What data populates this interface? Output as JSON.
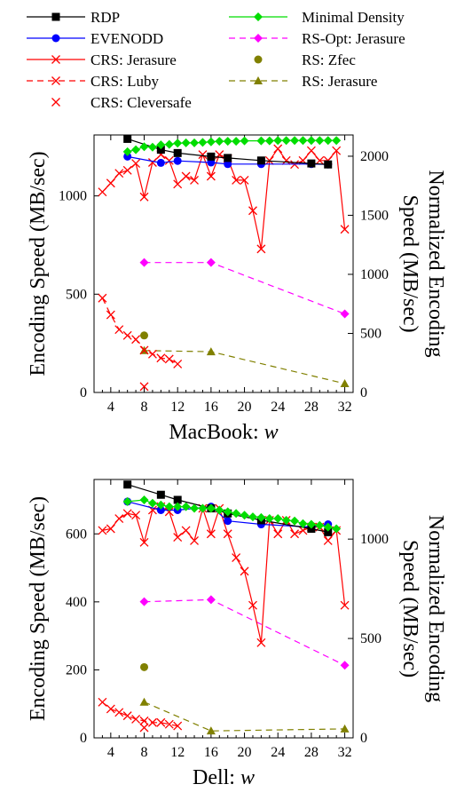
{
  "legend": [
    {
      "id": "rdp",
      "label": "RDP",
      "color": "#000000",
      "marker": "square",
      "dash": "solid"
    },
    {
      "id": "evenodd",
      "label": "EVENODD",
      "color": "#0000ff",
      "marker": "circle",
      "dash": "solid"
    },
    {
      "id": "crs_jer",
      "label": "CRS: Jerasure",
      "color": "#ff0000",
      "marker": "x",
      "dash": "solid"
    },
    {
      "id": "crs_luby",
      "label": "CRS: Luby",
      "color": "#ff0000",
      "marker": "x",
      "dash": "dashed"
    },
    {
      "id": "crs_clever",
      "label": "CRS: Cleversafe",
      "color": "#ff0000",
      "marker": "x",
      "dash": "none"
    },
    {
      "id": "mindens",
      "label": "Minimal Density",
      "color": "#00dd00",
      "marker": "diamond",
      "dash": "solid"
    },
    {
      "id": "rsopt",
      "label": "RS-Opt: Jerasure",
      "color": "#ff00ff",
      "marker": "diamond",
      "dash": "dashed"
    },
    {
      "id": "rszfec",
      "label": "RS: Zfec",
      "color": "#808000",
      "marker": "circle",
      "dash": "none"
    },
    {
      "id": "rsjer",
      "label": "RS: Jerasure",
      "color": "#808000",
      "marker": "triangle",
      "dash": "dashed"
    }
  ],
  "chart_data": [
    {
      "type": "line",
      "xlabel_text": "MacBook: ",
      "xlabel_var": "w",
      "ylabel": "Encoding Speed (MB/sec)",
      "y2label_line1": "Normalized Encoding",
      "y2label_line2": "Speed (MB/sec)",
      "xlim": [
        2,
        33
      ],
      "ylim": [
        0,
        1310
      ],
      "y2lim": [
        0,
        2180
      ],
      "xticks": [
        4,
        8,
        12,
        16,
        20,
        24,
        28,
        32
      ],
      "yticks": [
        0,
        500,
        1000
      ],
      "y2ticks": [
        0,
        500,
        1000,
        1500,
        2000
      ],
      "series": [
        {
          "id": "rdp",
          "x": [
            6,
            10,
            12,
            16,
            18,
            22,
            28,
            30
          ],
          "y": [
            1290,
            1235,
            1218,
            1200,
            1193,
            1180,
            1165,
            1160
          ]
        },
        {
          "id": "evenodd",
          "x": [
            6,
            10,
            12,
            16,
            18,
            22,
            28,
            30
          ],
          "y": [
            1200,
            1168,
            1178,
            1170,
            1162,
            1162,
            1162,
            1160
          ]
        },
        {
          "id": "crs_jer",
          "x": [
            3,
            4,
            5,
            6,
            7,
            8,
            9,
            10,
            11,
            12,
            13,
            14,
            15,
            16,
            17,
            18,
            19,
            20,
            21,
            22,
            23,
            24,
            25,
            26,
            27,
            28,
            29,
            30,
            31,
            32
          ],
          "y": [
            1020,
            1065,
            1115,
            1130,
            1165,
            995,
            1170,
            1210,
            1180,
            1060,
            1100,
            1080,
            1210,
            1100,
            1210,
            1190,
            1080,
            1080,
            925,
            730,
            1180,
            1240,
            1180,
            1160,
            1180,
            1230,
            1180,
            1180,
            1230,
            830
          ]
        },
        {
          "id": "crs_luby",
          "x": [
            3,
            4,
            5,
            6,
            7,
            8,
            9,
            10,
            11,
            12
          ],
          "y": [
            480,
            395,
            320,
            290,
            270,
            215,
            195,
            175,
            170,
            145
          ]
        },
        {
          "id": "crs_clever",
          "x": [
            8
          ],
          "y": [
            30
          ]
        },
        {
          "id": "mindens",
          "x": [
            6,
            7,
            8,
            9,
            10,
            11,
            12,
            13,
            14,
            15,
            16,
            17,
            18,
            19,
            20,
            22,
            23,
            24,
            25,
            26,
            27,
            28,
            29,
            30,
            31
          ],
          "y": [
            1225,
            1235,
            1250,
            1248,
            1260,
            1262,
            1268,
            1270,
            1270,
            1272,
            1275,
            1278,
            1278,
            1278,
            1280,
            1280,
            1280,
            1282,
            1282,
            1282,
            1282,
            1282,
            1282,
            1282,
            1282
          ]
        },
        {
          "id": "rsopt",
          "axis": "y2",
          "x": [
            8,
            16,
            32
          ],
          "y": [
            1100,
            1100,
            665
          ]
        },
        {
          "id": "rszfec",
          "x": [
            8
          ],
          "y": [
            290
          ]
        },
        {
          "id": "rsjer",
          "axis": "y2",
          "x": [
            8,
            16,
            32
          ],
          "y": [
            355,
            345,
            75
          ]
        }
      ]
    },
    {
      "type": "line",
      "xlabel_text": "Dell: ",
      "xlabel_var": "w",
      "ylabel": "Encoding Speed (MB/sec)",
      "y2label_line1": "Normalized Encoding",
      "y2label_line2": "Speed (MB/sec)",
      "xlim": [
        2,
        33
      ],
      "ylim": [
        0,
        760
      ],
      "y2lim": [
        0,
        1300
      ],
      "xticks": [
        4,
        8,
        12,
        16,
        20,
        24,
        28,
        32
      ],
      "yticks": [
        0,
        200,
        400,
        600
      ],
      "y2ticks": [
        0,
        500,
        1000
      ],
      "series": [
        {
          "id": "rdp",
          "x": [
            6,
            10,
            12,
            16,
            18,
            22,
            28,
            30
          ],
          "y": [
            745,
            715,
            700,
            675,
            660,
            640,
            615,
            605
          ]
        },
        {
          "id": "evenodd",
          "x": [
            6,
            10,
            12,
            16,
            18,
            22,
            28,
            30
          ],
          "y": [
            695,
            670,
            670,
            680,
            638,
            628,
            620,
            628
          ]
        },
        {
          "id": "crs_jer",
          "x": [
            3,
            4,
            5,
            6,
            7,
            8,
            9,
            10,
            11,
            12,
            13,
            14,
            15,
            16,
            17,
            18,
            19,
            20,
            21,
            22,
            23,
            24,
            25,
            26,
            27,
            28,
            29,
            30,
            31,
            32
          ],
          "y": [
            610,
            615,
            645,
            660,
            655,
            575,
            670,
            680,
            665,
            590,
            610,
            580,
            675,
            600,
            675,
            600,
            530,
            490,
            390,
            280,
            640,
            600,
            640,
            600,
            610,
            620,
            620,
            580,
            610,
            390
          ]
        },
        {
          "id": "crs_luby",
          "x": [
            3,
            4,
            5,
            6,
            7,
            8,
            9,
            10,
            11,
            12
          ],
          "y": [
            105,
            85,
            75,
            65,
            55,
            50,
            45,
            45,
            40,
            35
          ]
        },
        {
          "id": "crs_clever",
          "x": [
            8
          ],
          "y": [
            30
          ]
        },
        {
          "id": "mindens",
          "x": [
            6,
            8,
            9,
            10,
            11,
            12,
            13,
            14,
            15,
            16,
            17,
            18,
            19,
            20,
            21,
            22,
            23,
            24,
            25,
            26,
            27,
            28,
            29,
            30,
            31
          ],
          "y": [
            695,
            700,
            690,
            685,
            680,
            680,
            680,
            675,
            675,
            675,
            670,
            665,
            660,
            655,
            650,
            648,
            645,
            645,
            640,
            638,
            630,
            628,
            625,
            620,
            615
          ]
        },
        {
          "id": "rsopt",
          "axis": "y2",
          "x": [
            8,
            16,
            32
          ],
          "y": [
            685,
            695,
            365
          ]
        },
        {
          "id": "rszfec",
          "x": [
            8
          ],
          "y": [
            208
          ]
        },
        {
          "id": "rsjer",
          "axis": "y2",
          "x": [
            8,
            16,
            32
          ],
          "y": [
            180,
            35,
            45
          ]
        }
      ]
    }
  ]
}
